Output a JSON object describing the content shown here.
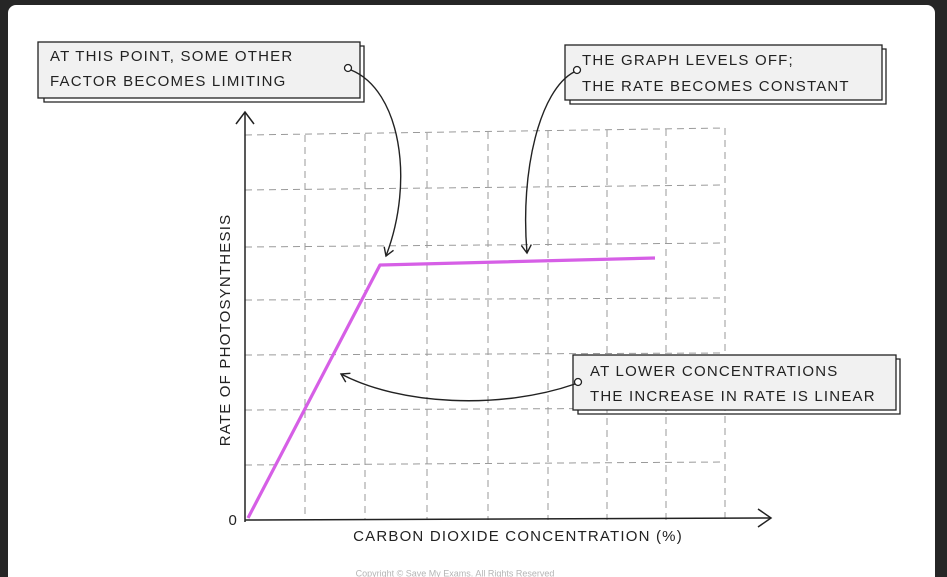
{
  "annotations": [
    {
      "lines": [
        "AT THIS POINT, SOME OTHER",
        "FACTOR BECOMES LIMITING"
      ]
    },
    {
      "lines": [
        "THE GRAPH LEVELS OFF;",
        "THE RATE BECOMES CONSTANT"
      ]
    },
    {
      "lines": [
        "AT LOWER CONCENTRATIONS",
        "THE INCREASE IN RATE IS LINEAR"
      ]
    }
  ],
  "axes": {
    "y_label": "RATE OF PHOTOSYNTHESIS",
    "x_label": "CARBON DIOXIDE CONCENTRATION (%)",
    "origin": "0"
  },
  "copyright": "Copyright © Save My Exams. All Rights Reserved"
}
